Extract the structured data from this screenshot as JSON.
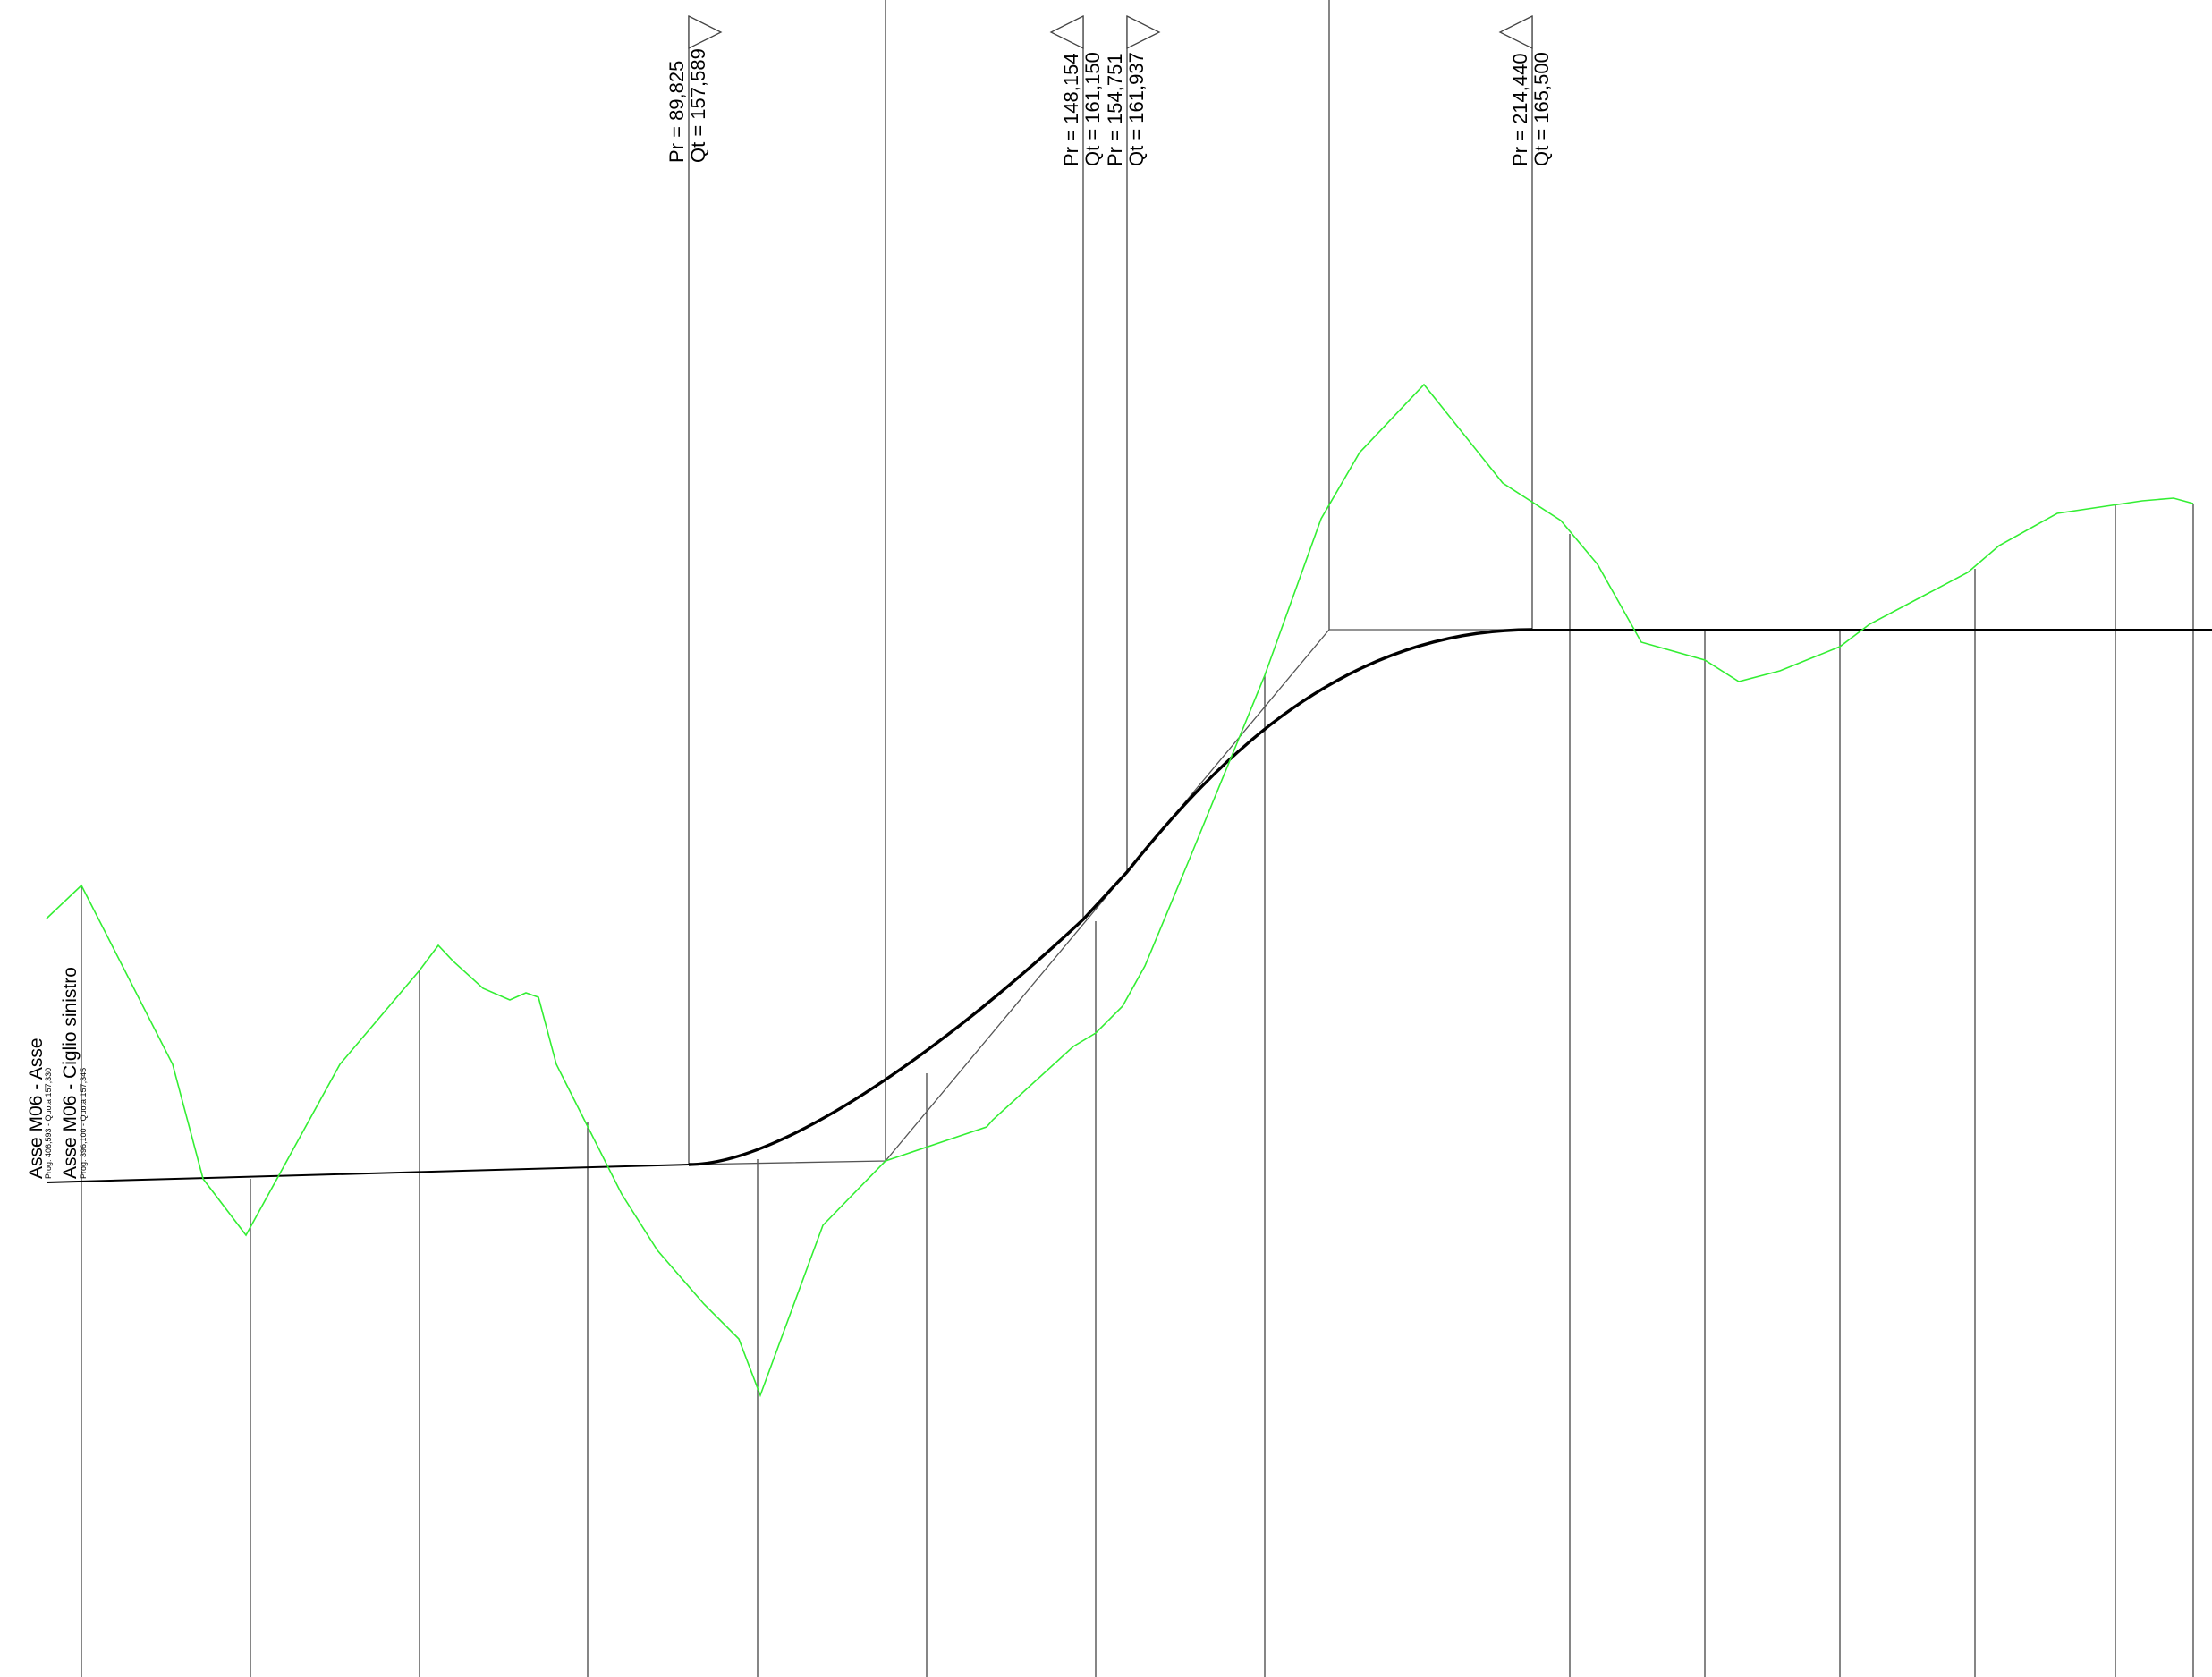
{
  "title_axis": "Asse M06 - Asse",
  "title_axis_sub": "Prog. 406,593 - Quota 157,330",
  "title_edge": "Asse M06 - Ciglio sinistro",
  "title_edge_sub": "Prog. 396,100 - Quota 157,345",
  "vertical_curve_markers": [
    {
      "pr": "Pr = 89,825",
      "qt": "Qt = 157,589",
      "flag": "right"
    },
    {
      "pr": "Pr = 148,154",
      "qt": "Qt = 161,150",
      "flag": "left"
    },
    {
      "pr": "Pr = 154,751",
      "qt": "Qt = 161,937",
      "flag": "right"
    },
    {
      "pr": "Pr = 214,440",
      "qt": "Qt = 165,500",
      "flag": "left"
    }
  ],
  "colors": {
    "terrain": "#33ee33",
    "profile": "#000000",
    "tangent": "#555555",
    "station_line": "#444444"
  }
}
